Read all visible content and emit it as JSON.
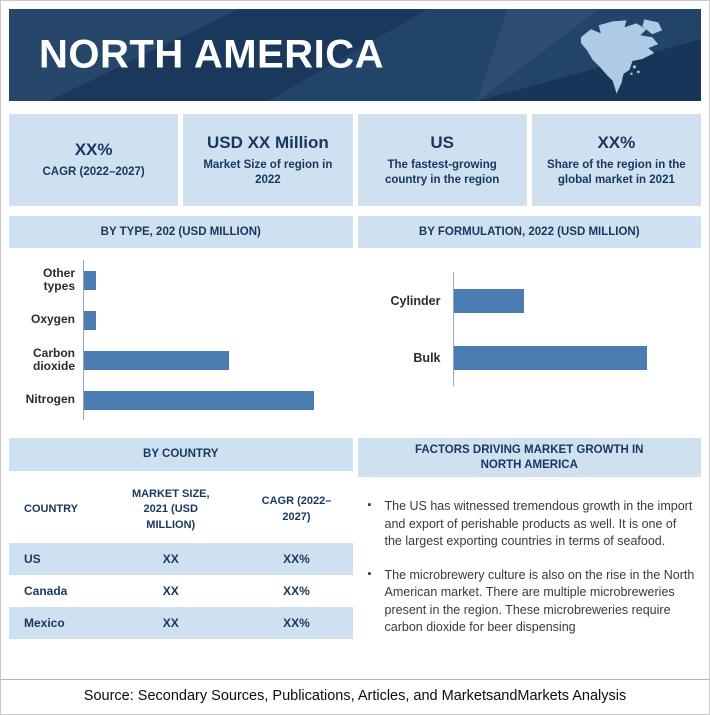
{
  "page": {
    "title": "NORTH AMERICA",
    "source_line": "Source: Secondary Sources, Publications, Articles, and MarketsandMarkets Analysis"
  },
  "colors": {
    "banner_bg": "#1b3d63",
    "accent_light_blue": "#cfe1f1",
    "bar_blue": "#4a7cb1",
    "navy_text": "#17375e",
    "map_fill": "#aecbe6"
  },
  "stats": [
    {
      "value": "XX%",
      "label": "CAGR (2022–2027)"
    },
    {
      "value": "USD XX Million",
      "label": "Market Size of region in 2022"
    },
    {
      "value": "US",
      "label": "The fastest-growing country in the region"
    },
    {
      "value": "XX%",
      "label": "Share of the region in the global market in 2021"
    }
  ],
  "chart_data": [
    {
      "type": "bar",
      "orientation": "horizontal",
      "title": "BY TYPE, 202 (USD MILLION)",
      "categories": [
        "Other types",
        "Oxygen",
        "Carbon dioxide",
        "Nitrogen"
      ],
      "values": [
        5,
        5,
        58,
        92
      ],
      "xlim": [
        0,
        100
      ],
      "categories_order": "top to bottom",
      "values_note": "Numeric values not labeled in source (XX placeholders); values are estimated relative bar lengths on a 0–100 scale",
      "bar_color": "#4a7cb1",
      "grid": false,
      "legend": false
    },
    {
      "type": "bar",
      "orientation": "horizontal",
      "title": "BY FORMULATION, 2022 (USD MILLION)",
      "categories": [
        "Cylinder",
        "Bulk"
      ],
      "values": [
        29,
        80
      ],
      "xlim": [
        0,
        100
      ],
      "categories_order": "top to bottom",
      "values_note": "Numeric values not labeled in source; values are estimated relative bar lengths on a 0–100 scale",
      "bar_color": "#4a7cb1",
      "grid": false,
      "legend": false
    }
  ],
  "country_table": {
    "header": "BY COUNTRY",
    "columns": [
      "COUNTRY",
      "MARKET SIZE, 2021 (USD MILLION)",
      "CAGR (2022–2027)"
    ],
    "rows": [
      {
        "country": "US",
        "market_size": "XX",
        "cagr": "XX%"
      },
      {
        "country": "Canada",
        "market_size": "XX",
        "cagr": "XX%"
      },
      {
        "country": "Mexico",
        "market_size": "XX",
        "cagr": "XX%"
      }
    ]
  },
  "factors": {
    "header": "FACTORS DRIVING MARKET GROWTH IN NORTH AMERICA",
    "bullets": [
      "The US has witnessed tremendous growth in the import and export of perishable products as well. It is one of the largest exporting countries in terms of seafood.",
      "The microbrewery culture is also on the rise in the North American market. There are multiple microbreweries present in the region. These microbreweries require carbon dioxide for beer dispensing"
    ]
  }
}
